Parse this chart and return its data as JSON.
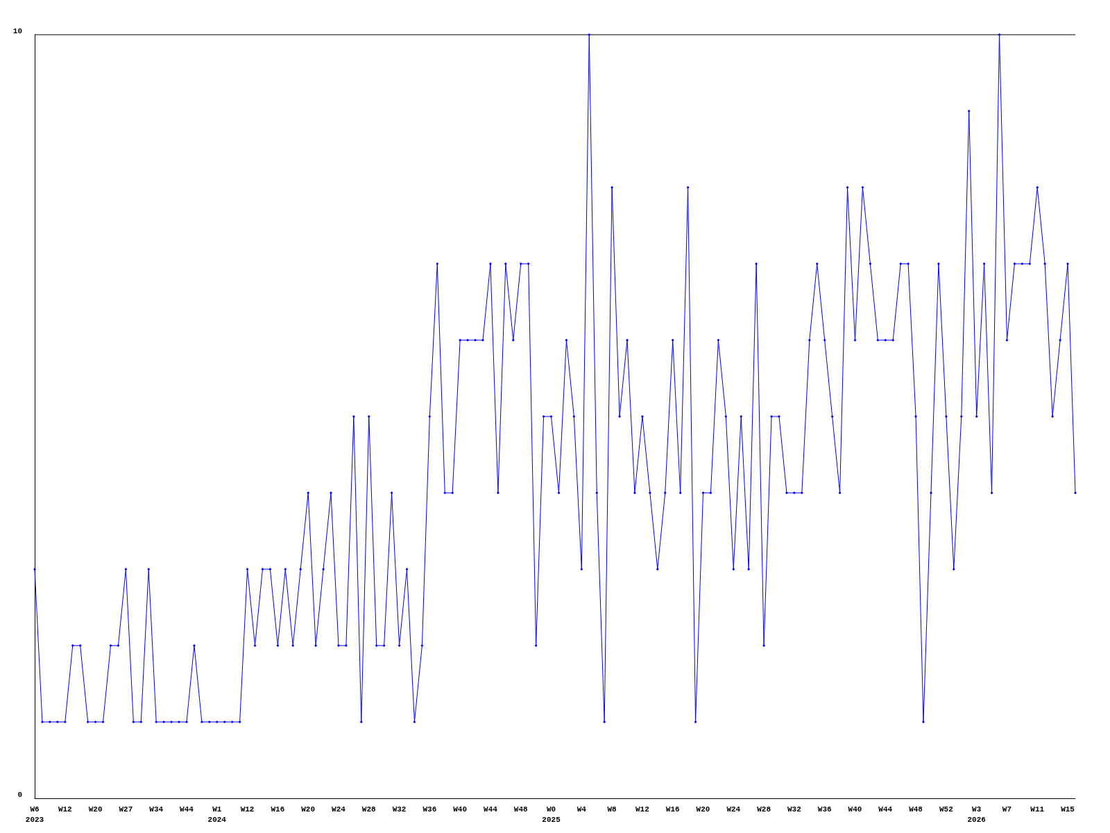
{
  "chart_data": {
    "type": "line",
    "categories": [
      "W6\n2023",
      null,
      null,
      null,
      "W12",
      null,
      null,
      null,
      "W20",
      null,
      null,
      null,
      "W27",
      null,
      null,
      null,
      "W34",
      null,
      null,
      null,
      "W44",
      null,
      null,
      null,
      "W1\n2024",
      null,
      null,
      null,
      "W12",
      null,
      null,
      null,
      "W16",
      null,
      null,
      null,
      "W20",
      null,
      null,
      null,
      "W24",
      null,
      null,
      null,
      "W28",
      null,
      null,
      null,
      "W32",
      null,
      null,
      null,
      "W36",
      null,
      null,
      null,
      "W40",
      null,
      null,
      null,
      "W44",
      null,
      null,
      null,
      "W48",
      null,
      null,
      null,
      "W0\n2025",
      null,
      null,
      null,
      "W4",
      null,
      null,
      null,
      "W8",
      null,
      null,
      null,
      "W12",
      null,
      null,
      null,
      "W16",
      null,
      null,
      null,
      "W20",
      null,
      null,
      null,
      "W24",
      null,
      null,
      null,
      "W28",
      null,
      null,
      null,
      "W32",
      null,
      null,
      null,
      "W36",
      null,
      null,
      null,
      "W40",
      null,
      null,
      null,
      "W44",
      null,
      null,
      null,
      "W48",
      null,
      null,
      null,
      "W52",
      null,
      null,
      null,
      "W3\n2026",
      null,
      null,
      null,
      "W7",
      null,
      null,
      null,
      "W11",
      null,
      null,
      null,
      "W15",
      null
    ],
    "series": [
      {
        "color": "#0000ff",
        "values": [
          3,
          1,
          1,
          1,
          1,
          2,
          2,
          1,
          1,
          1,
          2,
          2,
          3,
          1,
          1,
          3,
          1,
          1,
          1,
          1,
          1,
          2,
          1,
          1,
          1,
          1,
          1,
          1,
          3,
          2,
          3,
          3,
          2,
          3,
          2,
          3,
          4,
          2,
          3,
          4,
          2,
          2,
          5,
          1,
          5,
          2,
          2,
          4,
          2,
          3,
          1,
          2,
          5,
          7,
          4,
          4,
          6,
          6,
          6,
          6,
          7,
          4,
          7,
          6,
          7,
          7,
          2,
          5,
          5,
          4,
          6,
          5,
          3,
          10,
          4,
          1,
          8,
          5,
          6,
          4,
          5,
          4,
          3,
          4,
          6,
          4,
          8,
          1,
          4,
          4,
          6,
          5,
          3,
          5,
          3,
          7,
          2,
          5,
          5,
          4,
          4,
          4,
          6,
          7,
          6,
          5,
          4,
          8,
          6,
          8,
          7,
          6,
          6,
          6,
          7,
          7,
          5,
          1,
          4,
          7,
          5,
          3,
          5,
          9,
          5,
          7,
          4,
          10,
          6,
          7,
          7,
          7,
          8,
          7,
          5,
          6,
          7,
          4
        ]
      }
    ],
    "ylim": [
      0,
      10
    ],
    "yticks": [
      0,
      10
    ],
    "marker": "diamond",
    "line_style": "solid"
  }
}
